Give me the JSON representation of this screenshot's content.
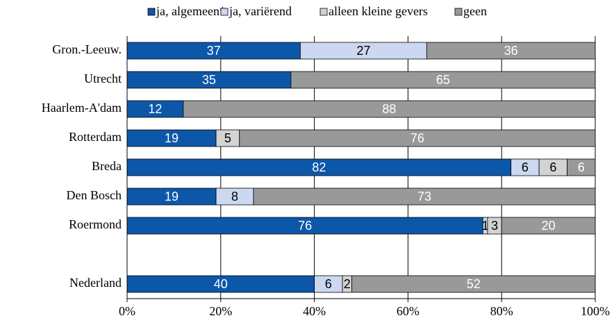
{
  "chart_data": {
    "type": "stacked_barh",
    "categories": [
      "Gron.-Leeuw.",
      "Utrecht",
      "Haarlem-A'dam",
      "Rotterdam",
      "Breda",
      "Den Bosch",
      "Roermond",
      null,
      "Nederland"
    ],
    "series": [
      {
        "name": "ja, algemeen*",
        "color": "#0d57a8",
        "values": [
          37,
          35,
          12,
          19,
          82,
          19,
          76,
          null,
          40
        ]
      },
      {
        "name": "ja, variërend",
        "color": "#ccd8f0",
        "values": [
          27,
          null,
          null,
          null,
          6,
          8,
          1,
          null,
          6
        ]
      },
      {
        "name": "alleen kleine gevers",
        "color": "#d3d3d3",
        "values": [
          null,
          null,
          null,
          5,
          6,
          null,
          3,
          null,
          2
        ]
      },
      {
        "name": "geen",
        "color": "#999999",
        "values": [
          36,
          65,
          88,
          76,
          6,
          73,
          20,
          null,
          52
        ]
      }
    ],
    "xlim": [
      0,
      100
    ],
    "xticks": [
      {
        "value": 0,
        "label": "0%"
      },
      {
        "value": 20,
        "label": "20%"
      },
      {
        "value": 40,
        "label": "40%"
      },
      {
        "value": 60,
        "label": "60%"
      },
      {
        "value": 80,
        "label": "80%"
      },
      {
        "value": 100,
        "label": "100%"
      }
    ],
    "grid": true,
    "legend": "top"
  }
}
